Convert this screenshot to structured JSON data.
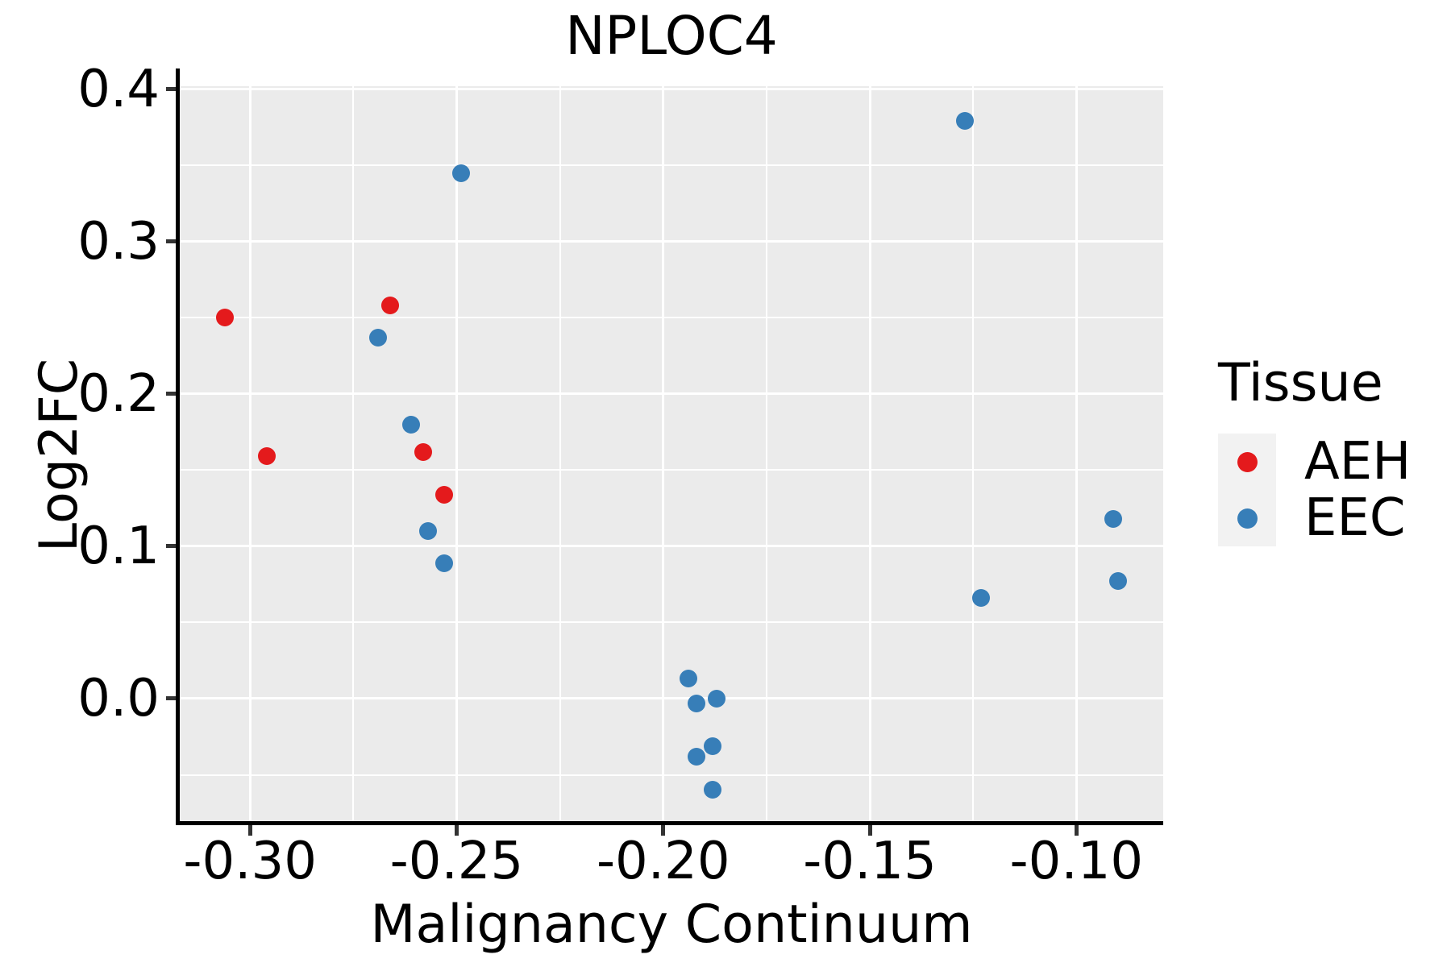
{
  "title": "NPLOC4",
  "legend": {
    "title": "Tissue",
    "items": [
      {
        "label": "AEH",
        "color": "#E41A1C"
      },
      {
        "label": "EEC",
        "color": "#377EB8"
      }
    ]
  },
  "colors": {
    "aeh_red": "#E41A1C",
    "eec_blue": "#377EB8",
    "panel_background": "#EBEBEB",
    "legend_key_background": "#F2F2F2",
    "gridline": "#FFFFFF",
    "axis_line": "#000000",
    "tick_mark": "#333333"
  },
  "chart_data": {
    "type": "scatter",
    "title": "NPLOC4",
    "xlabel": "Malignancy Continuum",
    "ylabel": "Log2FC",
    "xlim": [
      -0.317,
      -0.079
    ],
    "ylim": [
      -0.082,
      0.402
    ],
    "x_ticks": [
      -0.3,
      -0.25,
      -0.2,
      -0.15,
      -0.1
    ],
    "x_tick_labels": [
      "-0.30",
      "-0.25",
      "-0.20",
      "-0.15",
      "-0.10"
    ],
    "y_ticks": [
      0.0,
      0.1,
      0.2,
      0.3,
      0.4
    ],
    "y_tick_labels": [
      "0.0",
      "0.1",
      "0.2",
      "0.3",
      "0.4"
    ],
    "grid": "major+minor",
    "legend_position": "right",
    "point_radius_px": 11,
    "series": [
      {
        "name": "AEH",
        "color": "#E41A1C",
        "points": [
          [
            -0.306,
            0.25
          ],
          [
            -0.296,
            0.159
          ],
          [
            -0.266,
            0.258
          ],
          [
            -0.258,
            0.162
          ],
          [
            -0.253,
            0.134
          ]
        ]
      },
      {
        "name": "EEC",
        "color": "#377EB8",
        "points": [
          [
            -0.269,
            0.237
          ],
          [
            -0.261,
            0.18
          ],
          [
            -0.257,
            0.11
          ],
          [
            -0.253,
            0.089
          ],
          [
            -0.249,
            0.345
          ],
          [
            -0.194,
            0.013
          ],
          [
            -0.192,
            -0.003
          ],
          [
            -0.187,
            0.0
          ],
          [
            -0.192,
            -0.038
          ],
          [
            -0.188,
            -0.031
          ],
          [
            -0.188,
            -0.06
          ],
          [
            -0.127,
            0.379
          ],
          [
            -0.123,
            0.066
          ],
          [
            -0.091,
            0.118
          ],
          [
            -0.09,
            0.077
          ]
        ]
      }
    ]
  }
}
